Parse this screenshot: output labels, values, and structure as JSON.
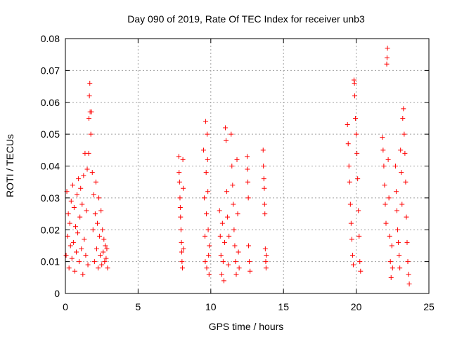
{
  "chart_data": {
    "type": "scatter",
    "title": "Day 090 of 2019, Rate Of TEC Index for receiver unb3",
    "xlabel": "GPS time / hours",
    "ylabel": "ROTI / TECUs",
    "xlim": [
      0,
      25
    ],
    "ylim": [
      0,
      0.08
    ],
    "xticks": [
      0,
      5,
      10,
      15,
      20,
      25
    ],
    "xtick_labels": [
      "0",
      "5",
      "10",
      "15",
      "20",
      "25"
    ],
    "yticks": [
      0,
      0.01,
      0.02,
      0.03,
      0.04,
      0.05,
      0.06,
      0.07,
      0.08
    ],
    "ytick_labels": [
      "0",
      "0.01",
      "0.02",
      "0.03",
      "0.04",
      "0.05",
      "0.06",
      "0.07",
      "0.08"
    ],
    "grid": true,
    "legend": "none",
    "marker": "+",
    "color": "#ff0000",
    "series": [
      {
        "points": [
          [
            0.05,
            0.012
          ],
          [
            0.1,
            0.032
          ],
          [
            0.15,
            0.018
          ],
          [
            0.2,
            0.025
          ],
          [
            0.25,
            0.008
          ],
          [
            0.3,
            0.022
          ],
          [
            0.35,
            0.015
          ],
          [
            0.4,
            0.029
          ],
          [
            0.45,
            0.011
          ],
          [
            0.5,
            0.034
          ],
          [
            0.55,
            0.016
          ],
          [
            0.6,
            0.027
          ],
          [
            0.65,
            0.007
          ],
          [
            0.7,
            0.021
          ],
          [
            0.75,
            0.013
          ],
          [
            0.8,
            0.031
          ],
          [
            0.85,
            0.019
          ],
          [
            0.9,
            0.036
          ],
          [
            0.95,
            0.01
          ],
          [
            1.0,
            0.024
          ],
          [
            1.05,
            0.033
          ],
          [
            1.1,
            0.014
          ],
          [
            1.15,
            0.028
          ],
          [
            1.2,
            0.006
          ],
          [
            1.25,
            0.037
          ],
          [
            1.3,
            0.017
          ],
          [
            1.35,
            0.044
          ],
          [
            1.4,
            0.012
          ],
          [
            1.45,
            0.026
          ],
          [
            1.5,
            0.039
          ],
          [
            1.55,
            0.009
          ],
          [
            1.6,
            0.044
          ],
          [
            1.62,
            0.055
          ],
          [
            1.65,
            0.062
          ],
          [
            1.68,
            0.066
          ],
          [
            1.7,
            0.057
          ],
          [
            1.75,
            0.05
          ],
          [
            1.8,
            0.057
          ],
          [
            1.85,
            0.038
          ],
          [
            1.9,
            0.02
          ],
          [
            1.95,
            0.031
          ],
          [
            2.0,
            0.01
          ],
          [
            2.05,
            0.025
          ],
          [
            2.1,
            0.035
          ],
          [
            2.15,
            0.014
          ],
          [
            2.2,
            0.022
          ],
          [
            2.25,
            0.008
          ],
          [
            2.3,
            0.03
          ],
          [
            2.35,
            0.018
          ],
          [
            2.4,
            0.012
          ],
          [
            2.45,
            0.026
          ],
          [
            2.5,
            0.009
          ],
          [
            2.55,
            0.02
          ],
          [
            2.6,
            0.013
          ],
          [
            2.65,
            0.017
          ],
          [
            2.7,
            0.01
          ],
          [
            2.75,
            0.015
          ],
          [
            2.8,
            0.011
          ],
          [
            2.85,
            0.014
          ],
          [
            2.9,
            0.008
          ]
        ]
      },
      {
        "points": [
          [
            7.8,
            0.043
          ],
          [
            7.82,
            0.038
          ],
          [
            7.85,
            0.035
          ],
          [
            7.88,
            0.03
          ],
          [
            7.9,
            0.027
          ],
          [
            7.92,
            0.024
          ],
          [
            7.95,
            0.02
          ],
          [
            7.98,
            0.016
          ],
          [
            8.0,
            0.013
          ],
          [
            8.02,
            0.01
          ],
          [
            8.05,
            0.008
          ],
          [
            8.08,
            0.042
          ],
          [
            8.1,
            0.033
          ],
          [
            8.12,
            0.014
          ],
          [
            9.5,
            0.045
          ],
          [
            9.55,
            0.03
          ],
          [
            9.6,
            0.018
          ],
          [
            9.62,
            0.01
          ],
          [
            9.65,
            0.054
          ],
          [
            9.68,
            0.038
          ],
          [
            9.7,
            0.025
          ],
          [
            9.72,
            0.008
          ],
          [
            9.75,
            0.05
          ],
          [
            9.78,
            0.042
          ],
          [
            9.8,
            0.032
          ],
          [
            9.82,
            0.02
          ],
          [
            9.85,
            0.012
          ],
          [
            9.88,
            0.006
          ],
          [
            9.9,
            0.015
          ],
          [
            10.6,
            0.026
          ],
          [
            10.65,
            0.018
          ],
          [
            10.7,
            0.012
          ],
          [
            10.75,
            0.006
          ],
          [
            10.8,
            0.022
          ],
          [
            10.85,
            0.01
          ],
          [
            10.9,
            0.004
          ],
          [
            10.95,
            0.016
          ],
          [
            11.0,
            0.052
          ],
          [
            11.05,
            0.048
          ],
          [
            11.1,
            0.032
          ],
          [
            11.15,
            0.024
          ],
          [
            11.2,
            0.009
          ],
          [
            11.25,
            0.018
          ],
          [
            11.4,
            0.05
          ],
          [
            11.45,
            0.04
          ],
          [
            11.5,
            0.034
          ],
          [
            11.55,
            0.028
          ],
          [
            11.6,
            0.02
          ],
          [
            11.65,
            0.015
          ],
          [
            11.7,
            0.01
          ],
          [
            11.75,
            0.006
          ],
          [
            11.8,
            0.042
          ],
          [
            11.85,
            0.025
          ],
          [
            11.9,
            0.013
          ],
          [
            11.95,
            0.008
          ],
          [
            12.5,
            0.043
          ],
          [
            12.52,
            0.039
          ],
          [
            12.55,
            0.035
          ],
          [
            12.58,
            0.03
          ],
          [
            12.6,
            0.015
          ],
          [
            12.65,
            0.01
          ],
          [
            12.7,
            0.007
          ],
          [
            13.6,
            0.045
          ],
          [
            13.62,
            0.04
          ],
          [
            13.65,
            0.036
          ],
          [
            13.68,
            0.033
          ],
          [
            13.7,
            0.028
          ],
          [
            13.72,
            0.025
          ],
          [
            13.75,
            0.014
          ],
          [
            13.78,
            0.01
          ],
          [
            13.8,
            0.008
          ],
          [
            13.82,
            0.012
          ]
        ]
      },
      {
        "points": [
          [
            19.4,
            0.053
          ],
          [
            19.45,
            0.047
          ],
          [
            19.5,
            0.04
          ],
          [
            19.55,
            0.035
          ],
          [
            19.6,
            0.028
          ],
          [
            19.65,
            0.022
          ],
          [
            19.7,
            0.017
          ],
          [
            19.75,
            0.012
          ],
          [
            19.8,
            0.009
          ],
          [
            19.85,
            0.067
          ],
          [
            19.88,
            0.066
          ],
          [
            19.9,
            0.062
          ],
          [
            19.95,
            0.055
          ],
          [
            20.0,
            0.05
          ],
          [
            20.05,
            0.044
          ],
          [
            20.1,
            0.036
          ],
          [
            20.15,
            0.026
          ],
          [
            20.2,
            0.018
          ],
          [
            20.25,
            0.01
          ],
          [
            20.3,
            0.007
          ],
          [
            21.8,
            0.049
          ],
          [
            21.85,
            0.045
          ],
          [
            21.9,
            0.04
          ],
          [
            21.95,
            0.034
          ],
          [
            22.0,
            0.028
          ],
          [
            22.05,
            0.022
          ],
          [
            22.1,
            0.072
          ],
          [
            22.12,
            0.074
          ],
          [
            22.15,
            0.077
          ],
          [
            22.2,
            0.042
          ],
          [
            22.25,
            0.03
          ],
          [
            22.3,
            0.018
          ],
          [
            22.35,
            0.01
          ],
          [
            22.4,
            0.005
          ],
          [
            22.45,
            0.015
          ],
          [
            22.5,
            0.008
          ],
          [
            22.7,
            0.04
          ],
          [
            22.75,
            0.032
          ],
          [
            22.8,
            0.026
          ],
          [
            22.85,
            0.02
          ],
          [
            22.9,
            0.016
          ],
          [
            22.95,
            0.012
          ],
          [
            23.0,
            0.008
          ],
          [
            23.05,
            0.045
          ],
          [
            23.1,
            0.038
          ],
          [
            23.15,
            0.028
          ],
          [
            23.2,
            0.055
          ],
          [
            23.25,
            0.058
          ],
          [
            23.3,
            0.05
          ],
          [
            23.35,
            0.044
          ],
          [
            23.4,
            0.035
          ],
          [
            23.45,
            0.024
          ],
          [
            23.5,
            0.016
          ],
          [
            23.55,
            0.01
          ],
          [
            23.6,
            0.006
          ],
          [
            23.65,
            0.003
          ]
        ]
      }
    ]
  }
}
